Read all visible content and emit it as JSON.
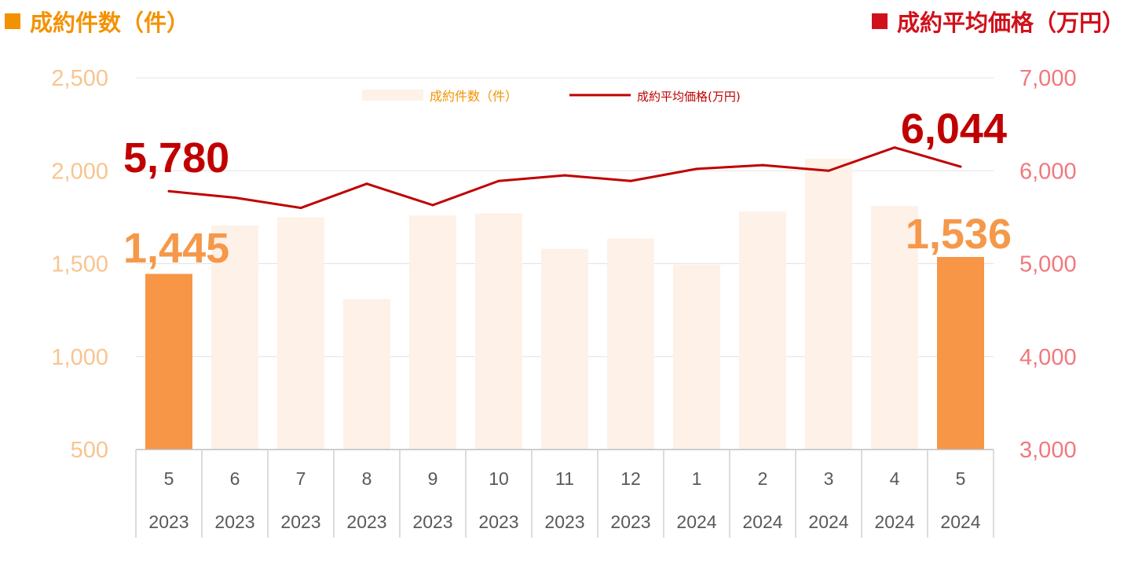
{
  "header": {
    "left_title": "成約件数（件）",
    "right_title": "成約平均価格（万円）"
  },
  "colors": {
    "count_accent": "#F39200",
    "price_accent": "#D0111B",
    "bar_highlight": "#F79646",
    "bar_light": "#FDF1E8",
    "line": "#C00000"
  },
  "chart_data": {
    "type": "bar",
    "categories": [
      "5",
      "6",
      "7",
      "8",
      "9",
      "10",
      "11",
      "12",
      "1",
      "2",
      "3",
      "4",
      "5"
    ],
    "years": [
      "2023",
      "2023",
      "2023",
      "2023",
      "2023",
      "2023",
      "2023",
      "2023",
      "2024",
      "2024",
      "2024",
      "2024",
      "2024"
    ],
    "series": [
      {
        "name": "成約件数（件）",
        "type": "bar",
        "axis": "left",
        "values": [
          1445,
          1705,
          1750,
          1310,
          1760,
          1770,
          1580,
          1635,
          1495,
          1780,
          2065,
          1810,
          1536
        ],
        "highlight_indices": [
          0,
          12
        ]
      },
      {
        "name": "成約平均価格(万円)",
        "type": "line",
        "axis": "right",
        "values": [
          5780,
          5710,
          5600,
          5860,
          5630,
          5890,
          5950,
          5890,
          6020,
          6060,
          6000,
          6250,
          6044
        ]
      }
    ],
    "y_left": {
      "min": 500,
      "max": 2500,
      "ticks": [
        "500",
        "1,000",
        "1,500",
        "2,000",
        "2,500"
      ],
      "tick_values": [
        500,
        1000,
        1500,
        2000,
        2500
      ]
    },
    "y_right": {
      "min": 3000,
      "max": 7000,
      "ticks": [
        "3,000",
        "4,000",
        "5,000",
        "6,000",
        "7,000"
      ],
      "tick_values": [
        3000,
        4000,
        5000,
        6000,
        7000
      ]
    },
    "annotations": {
      "first_price": "5,780",
      "last_price": "6,044",
      "first_count": "1,445",
      "last_count": "1,536"
    },
    "legend": [
      "成約件数（件）",
      "成約平均価格(万円)"
    ],
    "legend_position": "top-center",
    "grid": true
  }
}
